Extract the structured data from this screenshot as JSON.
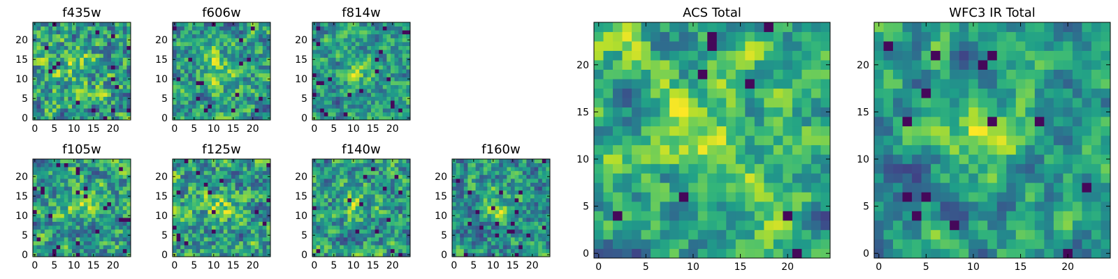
{
  "chart_data": [
    {
      "type": "heatmap",
      "title": "f435w",
      "colormap": "viridis",
      "grid_size": 25,
      "xlim": [
        0,
        24
      ],
      "ylim": [
        0,
        24
      ],
      "x_ticks": [
        0,
        5,
        10,
        15,
        20
      ],
      "y_ticks": [
        0,
        5,
        10,
        15,
        20
      ]
    },
    {
      "type": "heatmap",
      "title": "f606w",
      "colormap": "viridis",
      "grid_size": 25,
      "xlim": [
        0,
        24
      ],
      "ylim": [
        0,
        24
      ],
      "x_ticks": [
        0,
        5,
        10,
        15,
        20
      ],
      "y_ticks": [
        0,
        5,
        10,
        15,
        20
      ]
    },
    {
      "type": "heatmap",
      "title": "f814w",
      "colormap": "viridis",
      "grid_size": 25,
      "xlim": [
        0,
        24
      ],
      "ylim": [
        0,
        24
      ],
      "x_ticks": [
        0,
        5,
        10,
        15,
        20
      ],
      "y_ticks": [
        0,
        5,
        10,
        15,
        20
      ]
    },
    {
      "type": "heatmap",
      "title": "f105w",
      "colormap": "viridis",
      "grid_size": 25,
      "xlim": [
        0,
        24
      ],
      "ylim": [
        0,
        24
      ],
      "x_ticks": [
        0,
        5,
        10,
        15,
        20
      ],
      "y_ticks": [
        0,
        5,
        10,
        15,
        20
      ]
    },
    {
      "type": "heatmap",
      "title": "f125w",
      "colormap": "viridis",
      "grid_size": 25,
      "xlim": [
        0,
        24
      ],
      "ylim": [
        0,
        24
      ],
      "x_ticks": [
        0,
        5,
        10,
        15,
        20
      ],
      "y_ticks": [
        0,
        5,
        10,
        15,
        20
      ]
    },
    {
      "type": "heatmap",
      "title": "f140w",
      "colormap": "viridis",
      "grid_size": 25,
      "xlim": [
        0,
        24
      ],
      "ylim": [
        0,
        24
      ],
      "x_ticks": [
        0,
        5,
        10,
        15,
        20
      ],
      "y_ticks": [
        0,
        5,
        10,
        15,
        20
      ]
    },
    {
      "type": "heatmap",
      "title": "f160w",
      "colormap": "viridis",
      "grid_size": 25,
      "xlim": [
        0,
        24
      ],
      "ylim": [
        0,
        24
      ],
      "x_ticks": [
        0,
        5,
        10,
        15,
        20
      ],
      "y_ticks": [
        0,
        5,
        10,
        15,
        20
      ]
    },
    {
      "type": "heatmap",
      "title": "ACS Total",
      "colormap": "viridis",
      "grid_size": 25,
      "xlim": [
        0,
        24
      ],
      "ylim": [
        0,
        24
      ],
      "x_ticks": [
        0,
        5,
        10,
        15,
        20
      ],
      "y_ticks": [
        0,
        5,
        10,
        15,
        20
      ]
    },
    {
      "type": "heatmap",
      "title": "WFC3 IR Total",
      "colormap": "viridis",
      "grid_size": 25,
      "xlim": [
        0,
        24
      ],
      "ylim": [
        0,
        24
      ],
      "x_ticks": [
        0,
        5,
        10,
        15,
        20
      ],
      "y_ticks": [
        0,
        5,
        10,
        15,
        20
      ]
    }
  ]
}
